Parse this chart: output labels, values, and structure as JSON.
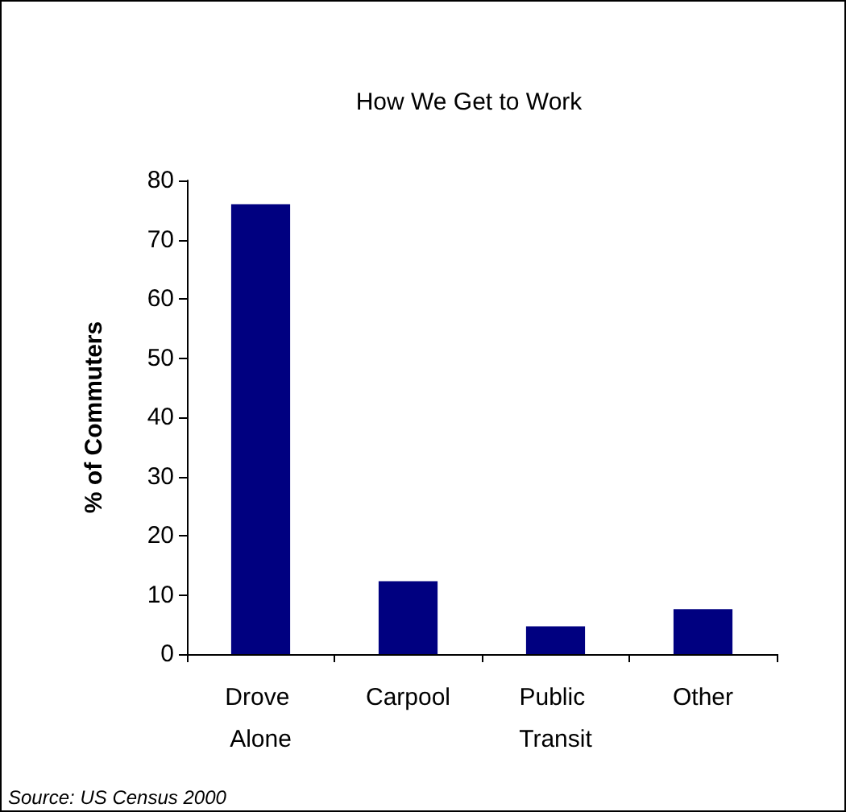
{
  "chart_data": {
    "type": "bar",
    "title": "How We Get to Work",
    "ylabel": "% of Commuters",
    "categories": [
      "Drove Alone",
      "Carpool",
      "Public Transit",
      "Other"
    ],
    "values": [
      76,
      12.3,
      4.7,
      7.6
    ],
    "color": "#000080",
    "ylim": [
      0,
      80
    ],
    "yticks": [
      0,
      10,
      20,
      30,
      40,
      50,
      60,
      70,
      80
    ],
    "grid": false,
    "annotations": [
      "Source: US Census 2000"
    ]
  }
}
